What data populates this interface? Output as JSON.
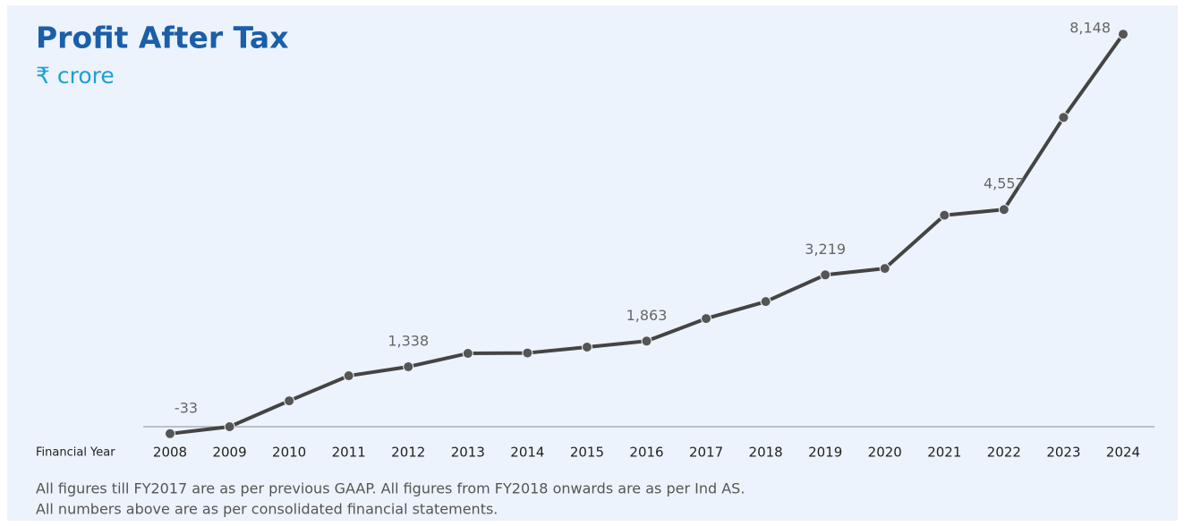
{
  "chart_data": {
    "type": "line",
    "title": "Profit After Tax",
    "subtitle": "₹ crore",
    "x_label": "Financial Year",
    "categories": [
      "2008",
      "2009",
      "2010",
      "2011",
      "2012",
      "2013",
      "2014",
      "2015",
      "2016",
      "2017",
      "2018",
      "2019",
      "2020",
      "2021",
      "2022",
      "2023",
      "2024"
    ],
    "series": [
      {
        "name": "Profit After Tax",
        "color": "#444444",
        "values": [
          -33,
          110,
          640,
          1153,
          1338,
          1611,
          1620,
          1740,
          1863,
          2325,
          2672,
          3219,
          3350,
          4440,
          4557,
          6443,
          8148
        ],
        "value_labels": [
          "-33",
          null,
          null,
          null,
          "1,338",
          null,
          null,
          null,
          "1,863",
          null,
          null,
          "3,219",
          null,
          null,
          "4,557",
          null,
          "8,148"
        ]
      }
    ],
    "ylim": [
      0,
      8500
    ],
    "notes": [
      "All figures till FY2017 are as per previous GAAP. All figures from FY2018 onwards are as per Ind AS.",
      "All numbers above are as per consolidated financial statements."
    ]
  }
}
